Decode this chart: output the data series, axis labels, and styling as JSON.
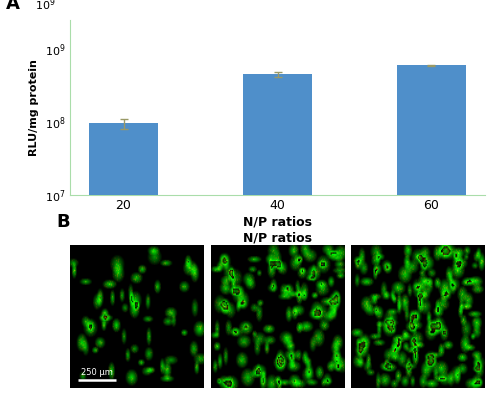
{
  "categories": [
    "20",
    "40",
    "60"
  ],
  "values": [
    95000000.0,
    450000000.0,
    600000000.0
  ],
  "errors": [
    15000000.0,
    30000000.0,
    12000000.0
  ],
  "bar_color": "#4f8fca",
  "ylabel": "RLU/mg protein",
  "xlabel": "N/P ratios",
  "panel_a_label": "A",
  "panel_b_label": "B",
  "panel_b_title": "N/P ratios",
  "scale_bar_text": "250 μm",
  "ymin": 10000000.0,
  "ymax": 1000000000.0,
  "background_color": "#ffffff",
  "fluor_dot_density_1": 0.004,
  "fluor_dot_density_2": 0.01,
  "fluor_dot_density_3": 0.012
}
